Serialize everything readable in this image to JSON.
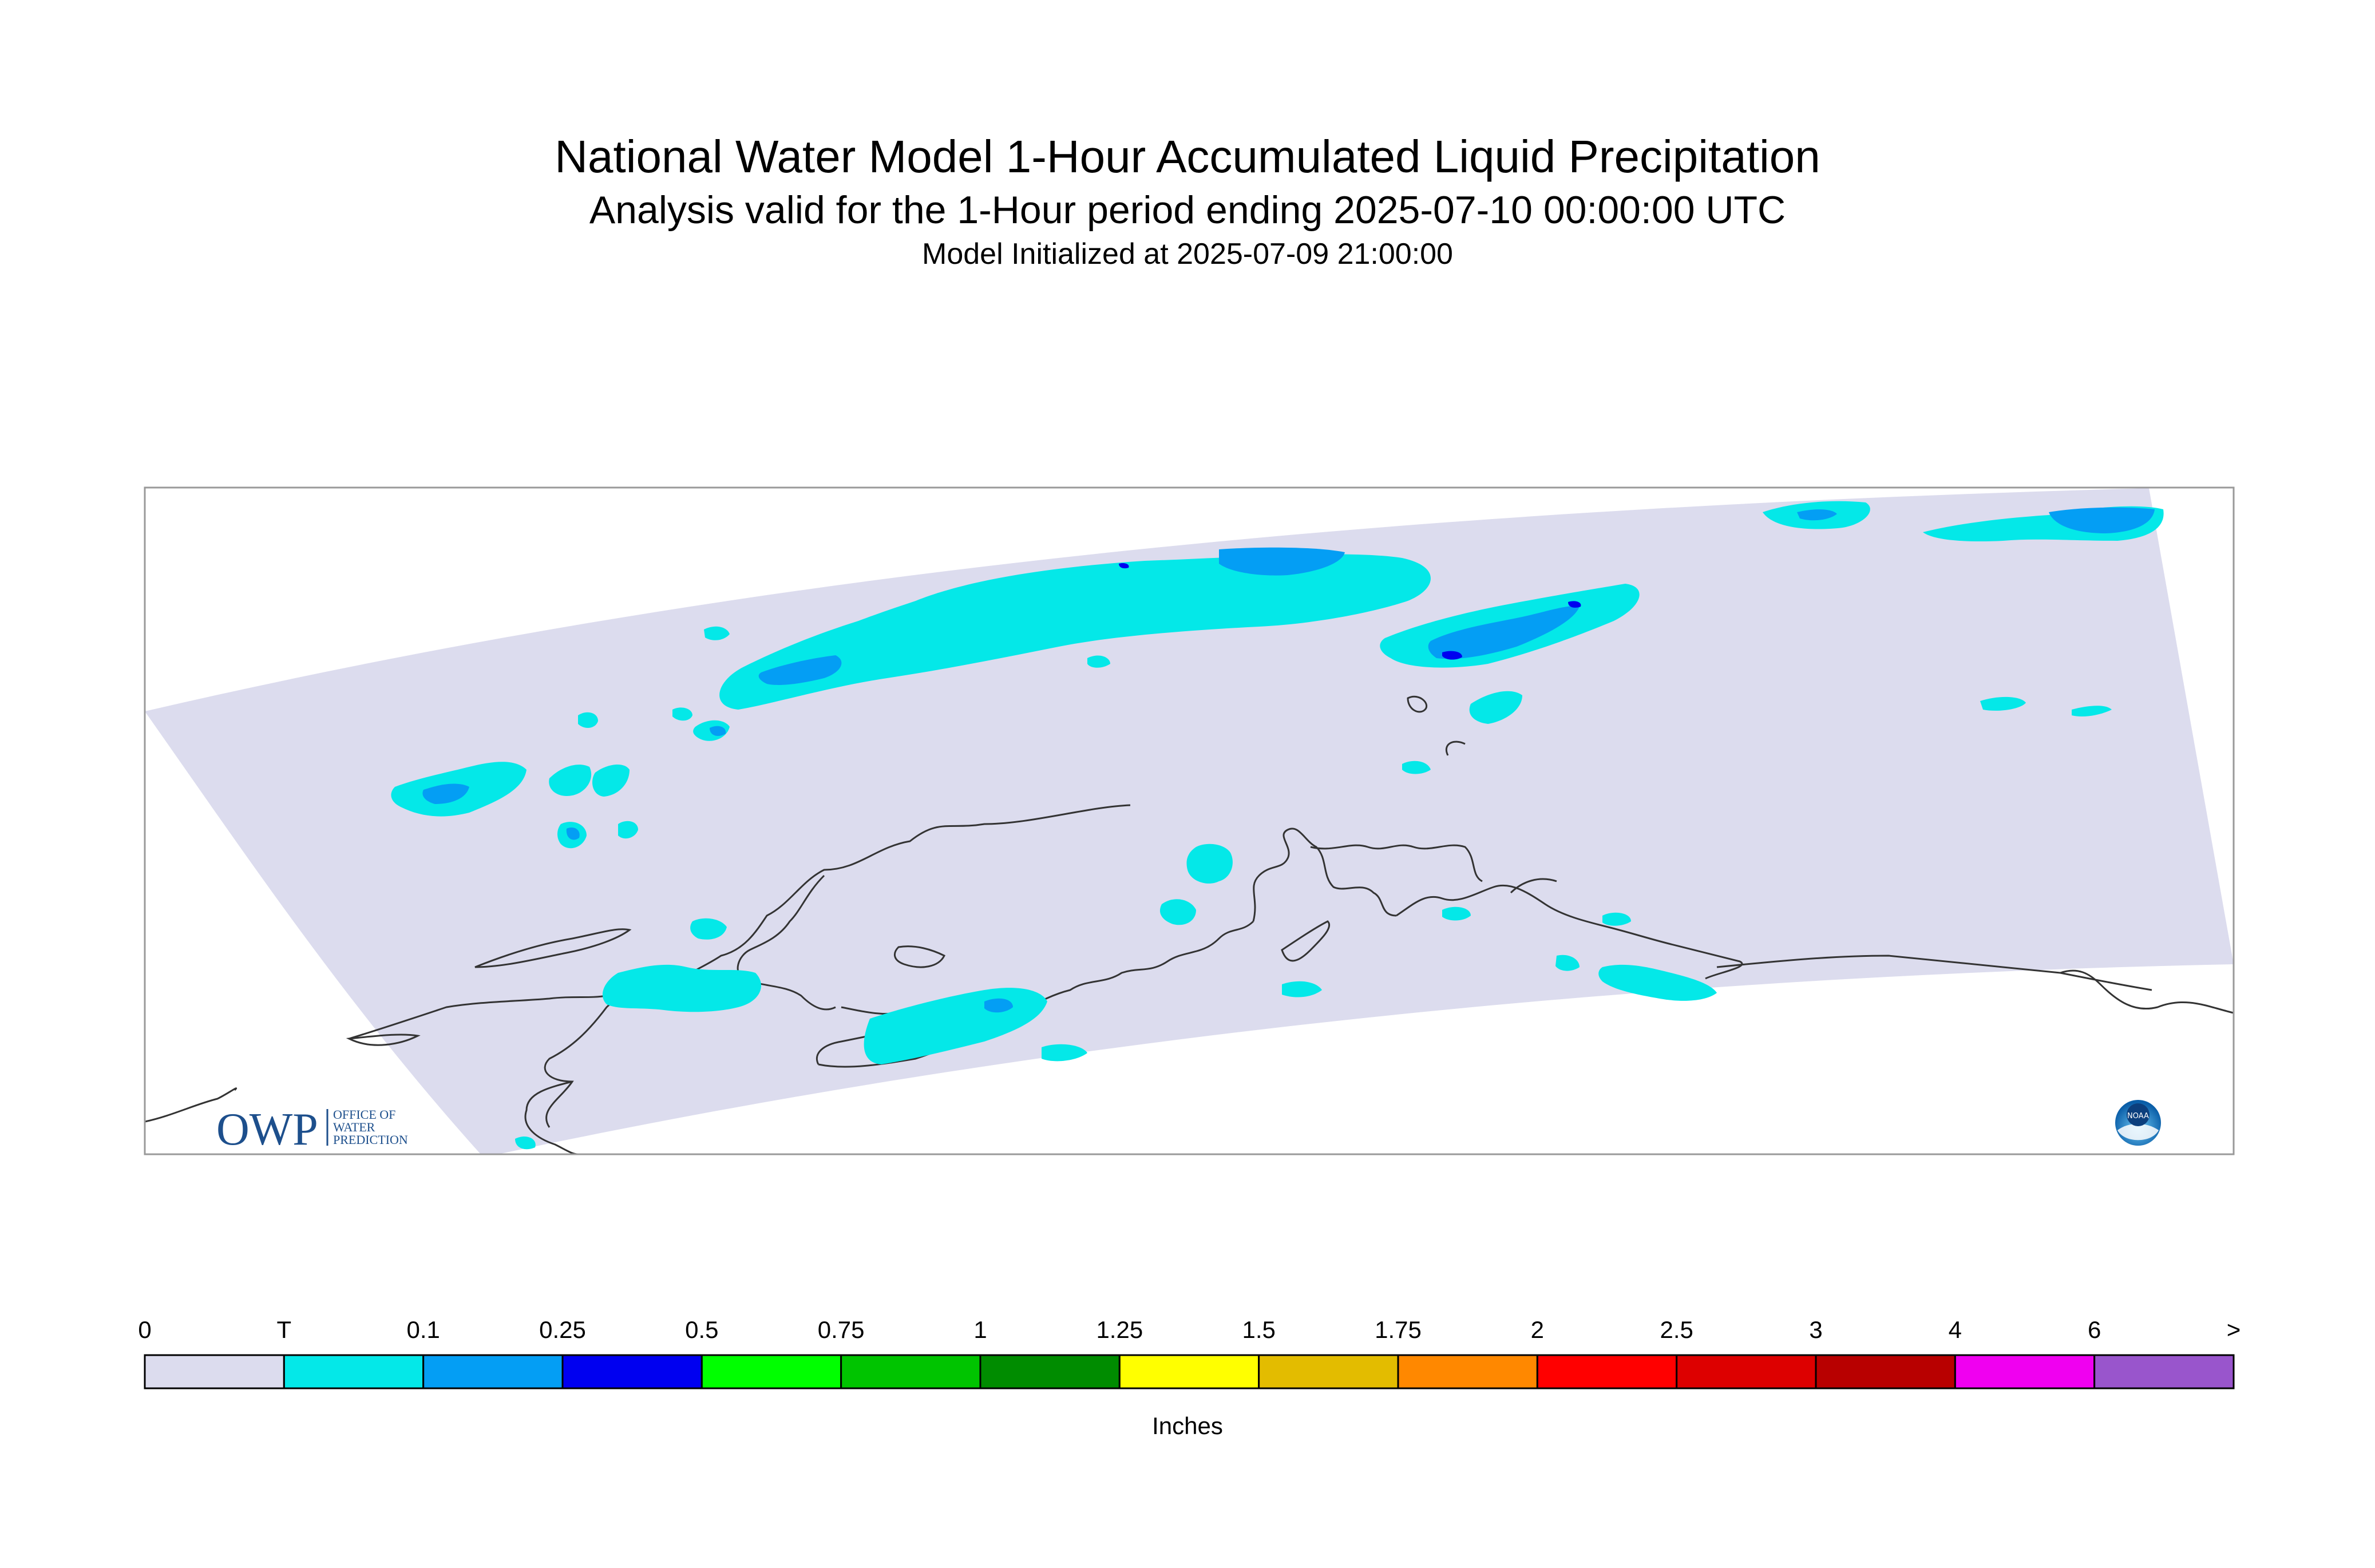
{
  "header": {
    "title": "National Water Model 1-Hour Accumulated Liquid Precipitation",
    "subtitle": "Analysis valid for the 1-Hour period ending 2025-07-10 00:00:00 UTC",
    "init_line": "Model Initialized at 2025-07-09 21:00:00"
  },
  "map": {
    "region": "Alaska",
    "domain_fill_color": "#dcdcee",
    "coastline_color": "#333333",
    "precip_colors": {
      "trace": "#04e8e8",
      "light": "#049ef4",
      "moderate": "#0000f0"
    }
  },
  "logos": {
    "owp": {
      "text": "OWP",
      "lines": [
        "OFFICE OF",
        "WATER",
        "PREDICTION"
      ],
      "color": "#1d4f8c"
    },
    "noaa": {
      "text": "NOAA"
    }
  },
  "legend": {
    "labels": [
      "0",
      "T",
      "0.1",
      "0.25",
      "0.5",
      "0.75",
      "1",
      "1.25",
      "1.5",
      "1.75",
      "2",
      "2.5",
      "3",
      "4",
      "6",
      ">"
    ],
    "colors": [
      "#dcdcee",
      "#04e8e8",
      "#049ef4",
      "#0000f0",
      "#00ff00",
      "#00c400",
      "#008c00",
      "#ffff00",
      "#e3bc00",
      "#ff8800",
      "#ff0000",
      "#dd0000",
      "#b80000",
      "#f000f0",
      "#9955cc"
    ],
    "units": "Inches"
  }
}
